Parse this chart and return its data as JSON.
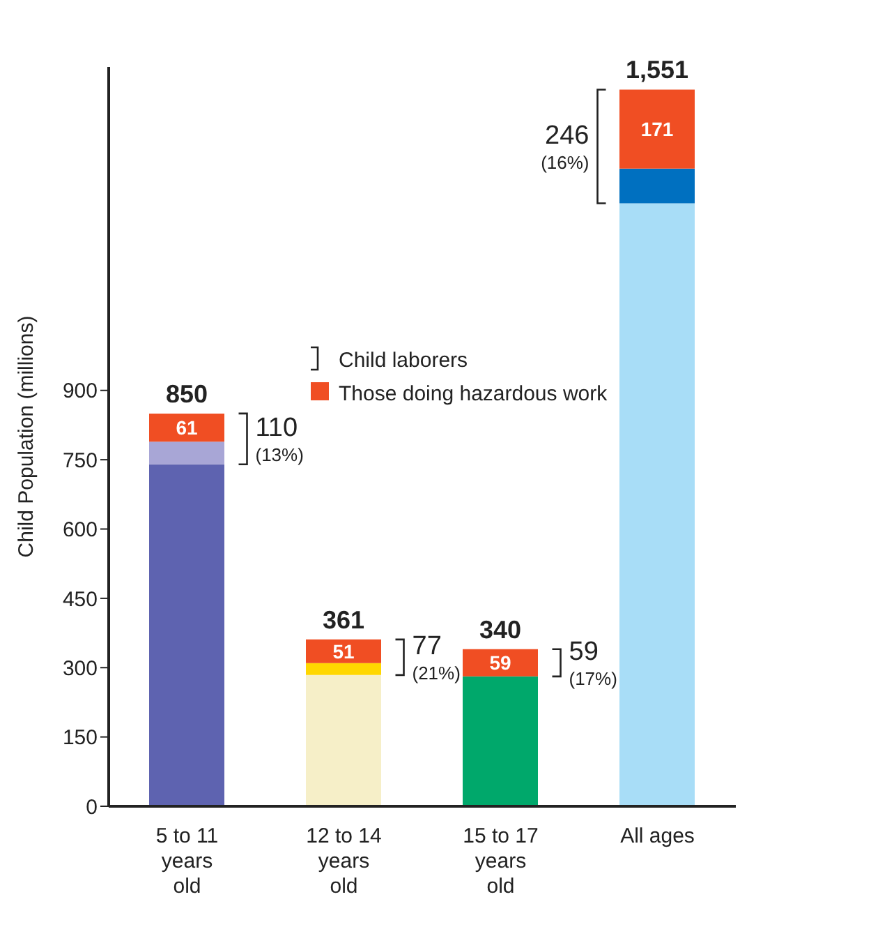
{
  "chart_data": {
    "type": "bar",
    "stacked": true,
    "ylabel": "Child Population (millions)",
    "categories": [
      "5 to 11 years old",
      "12 to 14 years old",
      "15 to 17 years old",
      "All ages"
    ],
    "series": [
      {
        "colors": [
          "#5e63b0",
          "#f6efc8",
          "#00a86b",
          "#a8ddf7"
        ],
        "values": [
          740,
          284,
          281,
          1305
        ]
      },
      {
        "colors": [
          "#a8a6d6",
          "#ffd700",
          "#00a86b",
          "#0070c0"
        ],
        "values": [
          49,
          26,
          0,
          75
        ]
      },
      {
        "name": "Those doing hazardous work",
        "color": "#f04e23",
        "values": [
          61,
          51,
          59,
          171
        ],
        "value_labels": [
          "61",
          "51",
          "59",
          "171"
        ]
      }
    ],
    "totals": [
      "850",
      "361",
      "340",
      "1,551"
    ],
    "ylim": [
      0,
      1600
    ],
    "yticks": [
      0,
      150,
      300,
      450,
      600,
      750,
      900
    ],
    "annotations": [
      "110 (13%)",
      "77 (21%)",
      "59 (17%)",
      "246 (16%)",
      "Child laborers"
    ],
    "legend": "center"
  }
}
